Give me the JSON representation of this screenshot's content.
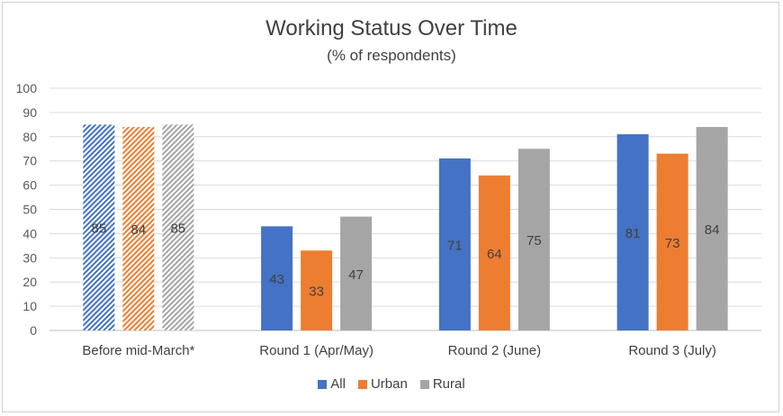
{
  "chart_data": {
    "type": "bar",
    "title": "Working Status Over Time",
    "subtitle": "(% of respondents)",
    "categories": [
      "Before mid-March*",
      "Round 1 (Apr/May)",
      "Round 2 (June)",
      "Round 3 (July)"
    ],
    "series": [
      {
        "name": "All",
        "values": [
          85,
          43,
          71,
          81
        ],
        "color": "#4472C4"
      },
      {
        "name": "Urban",
        "values": [
          84,
          33,
          64,
          73
        ],
        "color": "#ED7D31"
      },
      {
        "name": "Rural",
        "values": [
          85,
          47,
          75,
          84
        ],
        "color": "#A5A5A5"
      }
    ],
    "hatched_categories": [
      "Before mid-March*"
    ],
    "ylim": [
      0,
      100
    ],
    "yticks": [
      0,
      10,
      20,
      30,
      40,
      50,
      60,
      70,
      80,
      90,
      100
    ],
    "grid": true,
    "legend_position": "bottom"
  }
}
